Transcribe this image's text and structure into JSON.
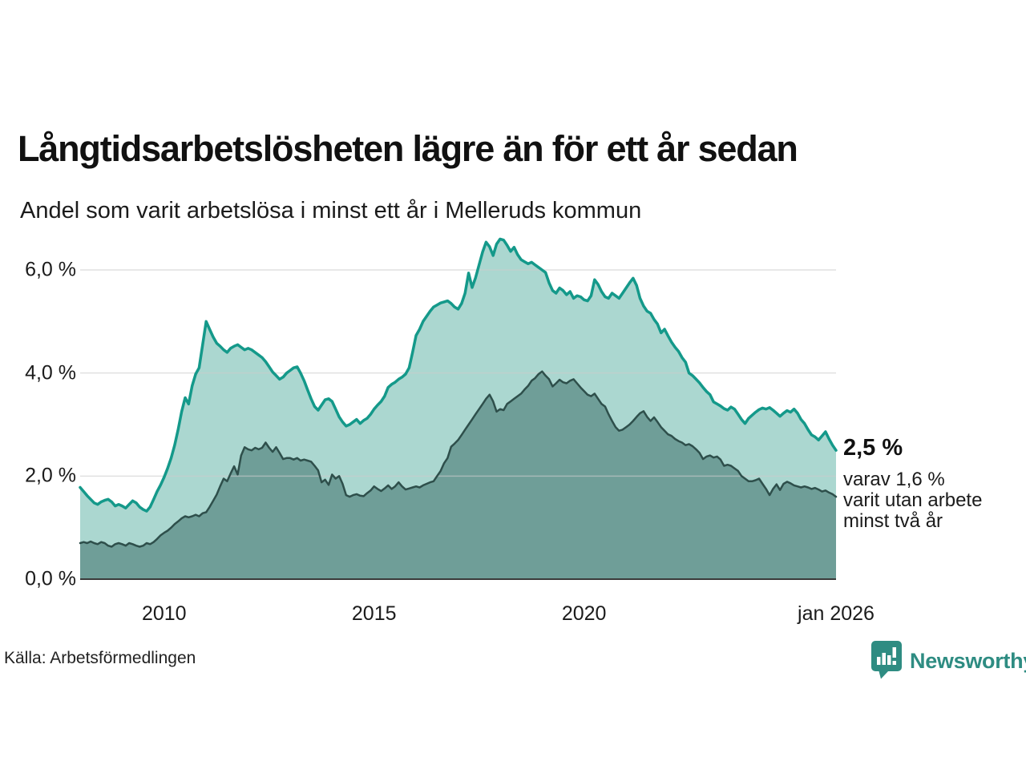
{
  "header": {
    "title": "Långtidsarbetslösheten lägre än för ett år sedan",
    "subtitle": "Andel som varit arbetslösa i minst ett år i Melleruds kommun"
  },
  "annotation": {
    "value_label": "2,5 %",
    "detail_line1": "varav 1,6 %",
    "detail_line2": "varit utan arbete",
    "detail_line3": "minst två år"
  },
  "footer": {
    "source": "Källa: Arbetsförmedlingen",
    "brand": "Newsworthy"
  },
  "colors": {
    "line_total": "#14998a",
    "fill_total": "#abd7d0",
    "line_two_years": "#2e4f4b",
    "fill_two_years": "#6f9e98",
    "gridline": "#cccccc",
    "baseline": "#3a3a3a",
    "brand_teal": "#2e8c82"
  },
  "chart_data": {
    "type": "area",
    "title": "Långtidsarbetslösheten lägre än för ett år sedan",
    "subtitle": "Andel som varit arbetslösa i minst ett år i Melleruds kommun",
    "xlabel": "",
    "ylabel": "",
    "x_start": "2008-01",
    "x_end": "2026-01",
    "frequency": "monthly",
    "ylim": [
      0,
      6.9
    ],
    "grid": true,
    "legend": "none",
    "y_ticks": [
      {
        "label": "6,0 %",
        "value": 6
      },
      {
        "label": "4,0 %",
        "value": 4
      },
      {
        "label": "2,0 %",
        "value": 2
      },
      {
        "label": "0,0 %",
        "value": 0
      }
    ],
    "x_ticks": [
      {
        "label": "2010",
        "month": 24
      },
      {
        "label": "2015",
        "month": 84
      },
      {
        "label": "2020",
        "month": 144
      },
      {
        "label": "jan 2026",
        "month": 216
      }
    ],
    "series": [
      {
        "id": "unemployed_min_one_year",
        "last_value_label": "2,5 %",
        "color": "#14998a",
        "fill": "#abd7d0",
        "values": [
          1.78,
          1.7,
          1.62,
          1.55,
          1.48,
          1.45,
          1.5,
          1.53,
          1.55,
          1.5,
          1.42,
          1.45,
          1.42,
          1.38,
          1.45,
          1.52,
          1.48,
          1.4,
          1.35,
          1.32,
          1.4,
          1.55,
          1.7,
          1.83,
          1.98,
          2.15,
          2.35,
          2.6,
          2.9,
          3.25,
          3.52,
          3.4,
          3.75,
          3.98,
          4.1,
          4.55,
          5.0,
          4.85,
          4.7,
          4.58,
          4.52,
          4.45,
          4.4,
          4.48,
          4.52,
          4.55,
          4.5,
          4.45,
          4.48,
          4.45,
          4.4,
          4.35,
          4.3,
          4.22,
          4.12,
          4.02,
          3.95,
          3.88,
          3.92,
          4.0,
          4.05,
          4.1,
          4.12,
          4.0,
          3.85,
          3.67,
          3.5,
          3.35,
          3.28,
          3.38,
          3.48,
          3.5,
          3.45,
          3.3,
          3.15,
          3.05,
          2.97,
          3.0,
          3.05,
          3.1,
          3.02,
          3.08,
          3.12,
          3.2,
          3.3,
          3.38,
          3.45,
          3.55,
          3.72,
          3.78,
          3.82,
          3.88,
          3.92,
          3.98,
          4.1,
          4.4,
          4.73,
          4.85,
          5.0,
          5.1,
          5.2,
          5.28,
          5.32,
          5.36,
          5.38,
          5.4,
          5.35,
          5.28,
          5.24,
          5.35,
          5.55,
          5.94,
          5.66,
          5.85,
          6.1,
          6.35,
          6.54,
          6.45,
          6.28,
          6.5,
          6.6,
          6.58,
          6.48,
          6.36,
          6.44,
          6.3,
          6.2,
          6.16,
          6.12,
          6.15,
          6.1,
          6.05,
          6.0,
          5.95,
          5.75,
          5.6,
          5.55,
          5.65,
          5.6,
          5.52,
          5.58,
          5.45,
          5.5,
          5.48,
          5.42,
          5.4,
          5.5,
          5.81,
          5.72,
          5.58,
          5.48,
          5.45,
          5.55,
          5.5,
          5.45,
          5.55,
          5.65,
          5.75,
          5.84,
          5.7,
          5.45,
          5.3,
          5.2,
          5.16,
          5.04,
          4.95,
          4.78,
          4.85,
          4.72,
          4.6,
          4.5,
          4.42,
          4.3,
          4.21,
          4.0,
          3.95,
          3.88,
          3.81,
          3.72,
          3.64,
          3.58,
          3.44,
          3.4,
          3.36,
          3.31,
          3.28,
          3.34,
          3.3,
          3.2,
          3.1,
          3.02,
          3.12,
          3.18,
          3.24,
          3.29,
          3.32,
          3.3,
          3.33,
          3.28,
          3.22,
          3.16,
          3.22,
          3.27,
          3.24,
          3.3,
          3.22,
          3.1,
          3.02,
          2.9,
          2.8,
          2.76,
          2.7,
          2.78,
          2.86,
          2.72,
          2.6,
          2.5
        ]
      },
      {
        "id": "unemployed_min_two_years",
        "last_value_label": "1,6 %",
        "color": "#2e4f4b",
        "fill": "#6f9e98",
        "values": [
          0.7,
          0.72,
          0.7,
          0.73,
          0.7,
          0.68,
          0.72,
          0.7,
          0.65,
          0.63,
          0.68,
          0.7,
          0.68,
          0.65,
          0.7,
          0.68,
          0.65,
          0.63,
          0.65,
          0.7,
          0.68,
          0.72,
          0.78,
          0.85,
          0.9,
          0.94,
          1.0,
          1.07,
          1.12,
          1.18,
          1.22,
          1.2,
          1.22,
          1.25,
          1.22,
          1.28,
          1.3,
          1.4,
          1.52,
          1.64,
          1.8,
          1.95,
          1.9,
          2.05,
          2.19,
          2.03,
          2.4,
          2.56,
          2.52,
          2.5,
          2.55,
          2.52,
          2.55,
          2.65,
          2.55,
          2.47,
          2.56,
          2.45,
          2.33,
          2.35,
          2.35,
          2.32,
          2.35,
          2.3,
          2.32,
          2.3,
          2.28,
          2.2,
          2.11,
          1.88,
          1.93,
          1.83,
          2.03,
          1.95,
          2.0,
          1.85,
          1.63,
          1.6,
          1.63,
          1.65,
          1.62,
          1.61,
          1.67,
          1.72,
          1.8,
          1.75,
          1.71,
          1.76,
          1.82,
          1.75,
          1.8,
          1.88,
          1.8,
          1.74,
          1.76,
          1.78,
          1.8,
          1.78,
          1.82,
          1.85,
          1.88,
          1.9,
          2.0,
          2.1,
          2.25,
          2.35,
          2.57,
          2.63,
          2.7,
          2.8,
          2.9,
          3.0,
          3.1,
          3.2,
          3.3,
          3.4,
          3.5,
          3.58,
          3.45,
          3.25,
          3.3,
          3.28,
          3.4,
          3.45,
          3.5,
          3.55,
          3.6,
          3.68,
          3.75,
          3.85,
          3.9,
          3.98,
          4.03,
          3.95,
          3.88,
          3.74,
          3.8,
          3.87,
          3.82,
          3.8,
          3.85,
          3.88,
          3.8,
          3.72,
          3.65,
          3.58,
          3.55,
          3.6,
          3.5,
          3.4,
          3.35,
          3.2,
          3.07,
          2.95,
          2.88,
          2.9,
          2.95,
          3.0,
          3.07,
          3.15,
          3.22,
          3.26,
          3.15,
          3.07,
          3.14,
          3.05,
          2.95,
          2.88,
          2.81,
          2.78,
          2.72,
          2.68,
          2.65,
          2.6,
          2.62,
          2.58,
          2.52,
          2.45,
          2.33,
          2.38,
          2.4,
          2.36,
          2.38,
          2.32,
          2.2,
          2.22,
          2.2,
          2.15,
          2.1,
          2.0,
          1.95,
          1.9,
          1.9,
          1.92,
          1.95,
          1.85,
          1.75,
          1.63,
          1.75,
          1.84,
          1.73,
          1.85,
          1.89,
          1.86,
          1.82,
          1.8,
          1.78,
          1.8,
          1.78,
          1.75,
          1.77,
          1.74,
          1.7,
          1.72,
          1.68,
          1.65,
          1.6
        ]
      }
    ]
  }
}
